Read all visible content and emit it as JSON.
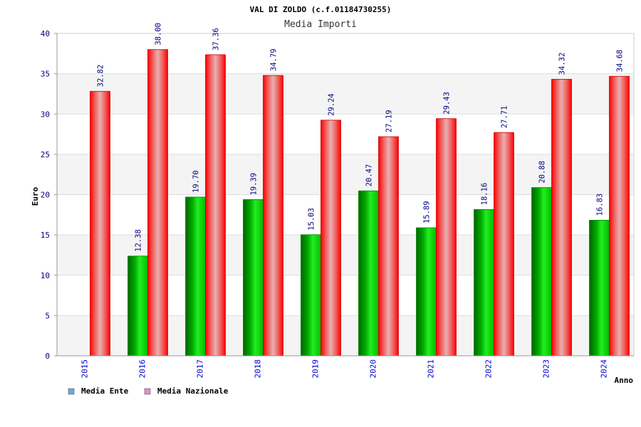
{
  "chart_data": {
    "type": "bar",
    "title": "VAL DI ZOLDO (c.f.01184730255)",
    "subtitle": "Media Importi",
    "xlabel": "Anno",
    "ylabel": "Euro",
    "ylim": [
      0,
      40
    ],
    "yticks": [
      0,
      5,
      10,
      15,
      20,
      25,
      30,
      35,
      40
    ],
    "grid": true,
    "legend_position": "bottom-left",
    "categories": [
      "2015",
      "2016",
      "2017",
      "2018",
      "2019",
      "2020",
      "2021",
      "2022",
      "2023",
      "2024"
    ],
    "series": [
      {
        "name": "Media Ente",
        "legend_color": "#6fa8e8",
        "bar_color": "#00cc00",
        "values": [
          null,
          12.38,
          19.7,
          19.39,
          15.03,
          20.47,
          15.89,
          18.16,
          20.88,
          16.83
        ],
        "labels": [
          "",
          "12.38",
          "19.70",
          "19.39",
          "15.03",
          "20.47",
          "15.89",
          "18.16",
          "20.88",
          "16.83"
        ]
      },
      {
        "name": "Media Nazionale",
        "legend_color": "#e38fc0",
        "bar_color": "#ff0000",
        "values": [
          32.82,
          38.0,
          37.36,
          34.79,
          29.24,
          27.19,
          29.43,
          27.71,
          34.32,
          34.68
        ],
        "labels": [
          "32.82",
          "38.00",
          "37.36",
          "34.79",
          "29.24",
          "27.19",
          "29.43",
          "27.71",
          "34.32",
          "34.68"
        ]
      }
    ]
  }
}
